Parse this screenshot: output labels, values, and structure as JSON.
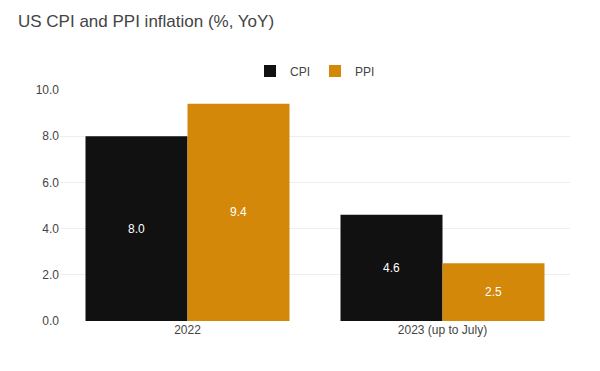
{
  "chart_data": {
    "type": "bar",
    "title": "US CPI and PPI inflation (%, YoY)",
    "categories": [
      "2022",
      "2023 (up to July)"
    ],
    "series": [
      {
        "name": "CPI",
        "color": "#111111",
        "values": [
          8.0,
          4.6
        ],
        "value_labels": [
          "8.0",
          "4.6"
        ]
      },
      {
        "name": "PPI",
        "color": "#D4880A",
        "values": [
          9.4,
          2.5
        ],
        "value_labels": [
          "9.4",
          "2.5"
        ]
      }
    ],
    "ylim": [
      0,
      10.0
    ],
    "yticks": [
      {
        "value": 0.0,
        "label": "0.0"
      },
      {
        "value": 2.0,
        "label": "2.0"
      },
      {
        "value": 4.0,
        "label": "4.0"
      },
      {
        "value": 6.0,
        "label": "6.0"
      },
      {
        "value": 8.0,
        "label": "8.0"
      },
      {
        "value": 10.0,
        "label": "10.0"
      }
    ],
    "grid": true,
    "data_labels": true,
    "legend": "top"
  }
}
